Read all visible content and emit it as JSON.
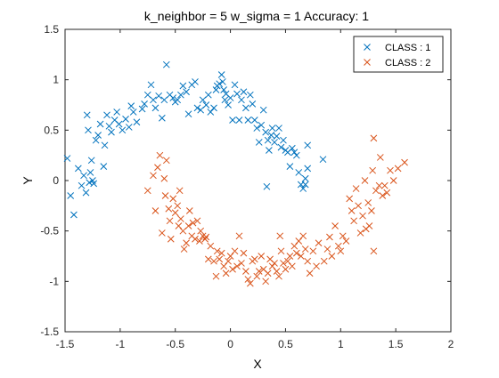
{
  "chart_data": {
    "type": "scatter",
    "title": "k_neighbor = 5     w_sigma = 1     Accuracy: 1",
    "xlabel": "X",
    "ylabel": "Y",
    "xlim": [
      -1.5,
      2
    ],
    "ylim": [
      -1.5,
      1.5
    ],
    "xticks": [
      -1.5,
      -1,
      -0.5,
      0,
      0.5,
      1,
      1.5,
      2
    ],
    "xtick_labels": [
      "-1.5",
      "-1",
      "-0.5",
      "0",
      "0.5",
      "1",
      "1.5",
      "2"
    ],
    "yticks": [
      -1.5,
      -1,
      -0.5,
      0,
      0.5,
      1,
      1.5
    ],
    "ytick_labels": [
      "-1.5",
      "-1",
      "-0.5",
      "0",
      "0.5",
      "1",
      "1.5"
    ],
    "grid": false,
    "marker": "x",
    "legend_position": "top-right",
    "series": [
      {
        "name": "CLASS : 1",
        "color": "#0072BD",
        "points": [
          [
            -1.48,
            0.22
          ],
          [
            -1.45,
            -0.15
          ],
          [
            -1.42,
            -0.34
          ],
          [
            -1.38,
            0.12
          ],
          [
            -1.35,
            -0.05
          ],
          [
            -1.33,
            0.05
          ],
          [
            -1.31,
            -0.12
          ],
          [
            -1.3,
            0.65
          ],
          [
            -1.29,
            0.5
          ],
          [
            -1.28,
            -0.02
          ],
          [
            -1.27,
            0.08
          ],
          [
            -1.26,
            0.2
          ],
          [
            -1.25,
            0.0
          ],
          [
            -1.24,
            -0.03
          ],
          [
            -1.22,
            0.4
          ],
          [
            -1.2,
            0.45
          ],
          [
            -1.18,
            0.56
          ],
          [
            -1.15,
            0.14
          ],
          [
            -1.14,
            0.35
          ],
          [
            -1.12,
            0.65
          ],
          [
            -1.1,
            0.54
          ],
          [
            -1.08,
            0.48
          ],
          [
            -1.05,
            0.6
          ],
          [
            -1.03,
            0.68
          ],
          [
            -1.01,
            0.56
          ],
          [
            -0.98,
            0.5
          ],
          [
            -0.95,
            0.61
          ],
          [
            -0.92,
            0.53
          ],
          [
            -0.9,
            0.74
          ],
          [
            -0.88,
            0.68
          ],
          [
            -0.85,
            0.58
          ],
          [
            -0.8,
            0.71
          ],
          [
            -0.78,
            0.76
          ],
          [
            -0.75,
            0.85
          ],
          [
            -0.72,
            0.95
          ],
          [
            -0.7,
            0.8
          ],
          [
            -0.68,
            0.72
          ],
          [
            -0.65,
            0.84
          ],
          [
            -0.62,
            0.62
          ],
          [
            -0.6,
            0.8
          ],
          [
            -0.58,
            1.15
          ],
          [
            -0.55,
            0.85
          ],
          [
            -0.52,
            0.82
          ],
          [
            -0.5,
            0.78
          ],
          [
            -0.48,
            0.8
          ],
          [
            -0.45,
            0.85
          ],
          [
            -0.43,
            0.94
          ],
          [
            -0.4,
            0.88
          ],
          [
            -0.38,
            0.66
          ],
          [
            -0.35,
            0.95
          ],
          [
            -0.32,
            0.98
          ],
          [
            -0.3,
            0.72
          ],
          [
            -0.27,
            0.7
          ],
          [
            -0.25,
            0.8
          ],
          [
            -0.22,
            0.75
          ],
          [
            -0.2,
            0.85
          ],
          [
            -0.18,
            0.68
          ],
          [
            -0.15,
            0.72
          ],
          [
            -0.13,
            0.9
          ],
          [
            -0.12,
            0.94
          ],
          [
            -0.1,
            0.96
          ],
          [
            -0.08,
            1.05
          ],
          [
            -0.07,
            0.98
          ],
          [
            -0.06,
            0.9
          ],
          [
            -0.05,
            0.8
          ],
          [
            -0.04,
            0.86
          ],
          [
            -0.02,
            0.75
          ],
          [
            0.0,
            0.82
          ],
          [
            0.02,
            0.6
          ],
          [
            0.04,
            0.95
          ],
          [
            0.06,
            0.86
          ],
          [
            0.08,
            0.6
          ],
          [
            0.1,
            0.8
          ],
          [
            0.12,
            0.88
          ],
          [
            0.14,
            0.72
          ],
          [
            0.16,
            0.6
          ],
          [
            0.18,
            0.85
          ],
          [
            0.2,
            0.76
          ],
          [
            0.22,
            0.6
          ],
          [
            0.24,
            0.52
          ],
          [
            0.26,
            0.38
          ],
          [
            0.28,
            0.55
          ],
          [
            0.3,
            0.7
          ],
          [
            0.32,
            0.48
          ],
          [
            0.34,
            0.4
          ],
          [
            0.35,
            0.3
          ],
          [
            0.37,
            0.45
          ],
          [
            0.38,
            0.52
          ],
          [
            0.4,
            0.38
          ],
          [
            0.42,
            0.44
          ],
          [
            0.44,
            0.52
          ],
          [
            0.46,
            0.33
          ],
          [
            0.48,
            0.4
          ],
          [
            0.5,
            0.3
          ],
          [
            0.52,
            0.28
          ],
          [
            0.54,
            0.14
          ],
          [
            0.56,
            0.32
          ],
          [
            0.58,
            0.28
          ],
          [
            0.6,
            0.25
          ],
          [
            0.33,
            -0.06
          ],
          [
            0.62,
            0.08
          ],
          [
            0.64,
            -0.04
          ],
          [
            0.66,
            -0.08
          ],
          [
            0.68,
            0.02
          ],
          [
            0.7,
            0.35
          ],
          [
            0.7,
            0.12
          ],
          [
            0.68,
            -0.04
          ],
          [
            0.84,
            0.21
          ]
        ]
      },
      {
        "name": "CLASS : 2",
        "color": "#D95319",
        "points": [
          [
            -0.75,
            -0.1
          ],
          [
            -0.7,
            0.05
          ],
          [
            -0.68,
            -0.3
          ],
          [
            -0.66,
            0.13
          ],
          [
            -0.64,
            0.25
          ],
          [
            -0.62,
            -0.52
          ],
          [
            -0.6,
            0.02
          ],
          [
            -0.59,
            -0.15
          ],
          [
            -0.58,
            0.2
          ],
          [
            -0.56,
            -0.28
          ],
          [
            -0.55,
            -0.4
          ],
          [
            -0.54,
            -0.58
          ],
          [
            -0.52,
            -0.18
          ],
          [
            -0.5,
            -0.32
          ],
          [
            -0.48,
            -0.25
          ],
          [
            -0.47,
            -0.45
          ],
          [
            -0.46,
            -0.1
          ],
          [
            -0.45,
            -0.38
          ],
          [
            -0.43,
            -0.5
          ],
          [
            -0.42,
            -0.68
          ],
          [
            -0.4,
            -0.62
          ],
          [
            -0.38,
            -0.45
          ],
          [
            -0.37,
            -0.3
          ],
          [
            -0.35,
            -0.55
          ],
          [
            -0.34,
            -0.42
          ],
          [
            -0.32,
            -0.58
          ],
          [
            -0.3,
            -0.4
          ],
          [
            -0.28,
            -0.6
          ],
          [
            -0.27,
            -0.5
          ],
          [
            -0.25,
            -0.55
          ],
          [
            -0.23,
            -0.58
          ],
          [
            -0.22,
            -0.56
          ],
          [
            -0.2,
            -0.78
          ],
          [
            -0.18,
            -0.65
          ],
          [
            -0.15,
            -0.8
          ],
          [
            -0.13,
            -0.95
          ],
          [
            -0.12,
            -0.7
          ],
          [
            -0.1,
            -0.78
          ],
          [
            -0.08,
            -0.72
          ],
          [
            -0.06,
            -0.85
          ],
          [
            -0.04,
            -0.92
          ],
          [
            -0.02,
            -0.8
          ],
          [
            0.0,
            -0.75
          ],
          [
            0.02,
            -0.88
          ],
          [
            0.04,
            -0.7
          ],
          [
            0.06,
            -0.85
          ],
          [
            0.08,
            -0.55
          ],
          [
            0.1,
            -0.82
          ],
          [
            0.12,
            -0.72
          ],
          [
            0.14,
            -0.9
          ],
          [
            0.16,
            -0.98
          ],
          [
            0.18,
            -1.02
          ],
          [
            0.2,
            -0.8
          ],
          [
            0.22,
            -0.78
          ],
          [
            0.24,
            -0.95
          ],
          [
            0.26,
            -0.9
          ],
          [
            0.28,
            -0.75
          ],
          [
            0.3,
            -0.88
          ],
          [
            0.32,
            -1.0
          ],
          [
            0.34,
            -0.92
          ],
          [
            0.36,
            -0.78
          ],
          [
            0.38,
            -0.85
          ],
          [
            0.4,
            -0.82
          ],
          [
            0.42,
            -0.9
          ],
          [
            0.44,
            -0.95
          ],
          [
            0.46,
            -0.7
          ],
          [
            0.48,
            -0.82
          ],
          [
            0.5,
            -0.88
          ],
          [
            0.52,
            -0.8
          ],
          [
            0.54,
            -0.75
          ],
          [
            0.56,
            -0.85
          ],
          [
            0.58,
            -0.65
          ],
          [
            0.6,
            -0.72
          ],
          [
            0.62,
            -0.6
          ],
          [
            0.64,
            -0.75
          ],
          [
            0.66,
            -0.55
          ],
          [
            0.68,
            -0.68
          ],
          [
            0.7,
            -0.8
          ],
          [
            0.72,
            -0.92
          ],
          [
            0.75,
            -0.7
          ],
          [
            0.78,
            -0.85
          ],
          [
            0.8,
            -0.62
          ],
          [
            0.85,
            -0.8
          ],
          [
            0.88,
            -0.68
          ],
          [
            0.9,
            -0.56
          ],
          [
            0.92,
            -0.75
          ],
          [
            0.95,
            -0.45
          ],
          [
            0.98,
            -0.65
          ],
          [
            1.0,
            -0.7
          ],
          [
            1.02,
            -0.55
          ],
          [
            1.05,
            -0.6
          ],
          [
            1.08,
            -0.18
          ],
          [
            1.1,
            -0.3
          ],
          [
            1.12,
            -0.4
          ],
          [
            1.14,
            -0.08
          ],
          [
            1.16,
            -0.25
          ],
          [
            1.18,
            -0.52
          ],
          [
            1.2,
            -0.35
          ],
          [
            1.22,
            0.0
          ],
          [
            1.23,
            -0.48
          ],
          [
            1.25,
            -0.22
          ],
          [
            1.26,
            -0.45
          ],
          [
            1.28,
            -0.3
          ],
          [
            1.29,
            0.1
          ],
          [
            1.3,
            0.42
          ],
          [
            1.32,
            -0.1
          ],
          [
            1.35,
            -0.05
          ],
          [
            1.36,
            0.23
          ],
          [
            1.38,
            -0.15
          ],
          [
            1.4,
            -0.05
          ],
          [
            1.42,
            -0.12
          ],
          [
            1.45,
            0.1
          ],
          [
            1.48,
            0.0
          ],
          [
            1.52,
            0.12
          ],
          [
            1.58,
            0.18
          ],
          [
            1.3,
            -0.7
          ],
          [
            0.45,
            -0.55
          ]
        ]
      }
    ]
  }
}
